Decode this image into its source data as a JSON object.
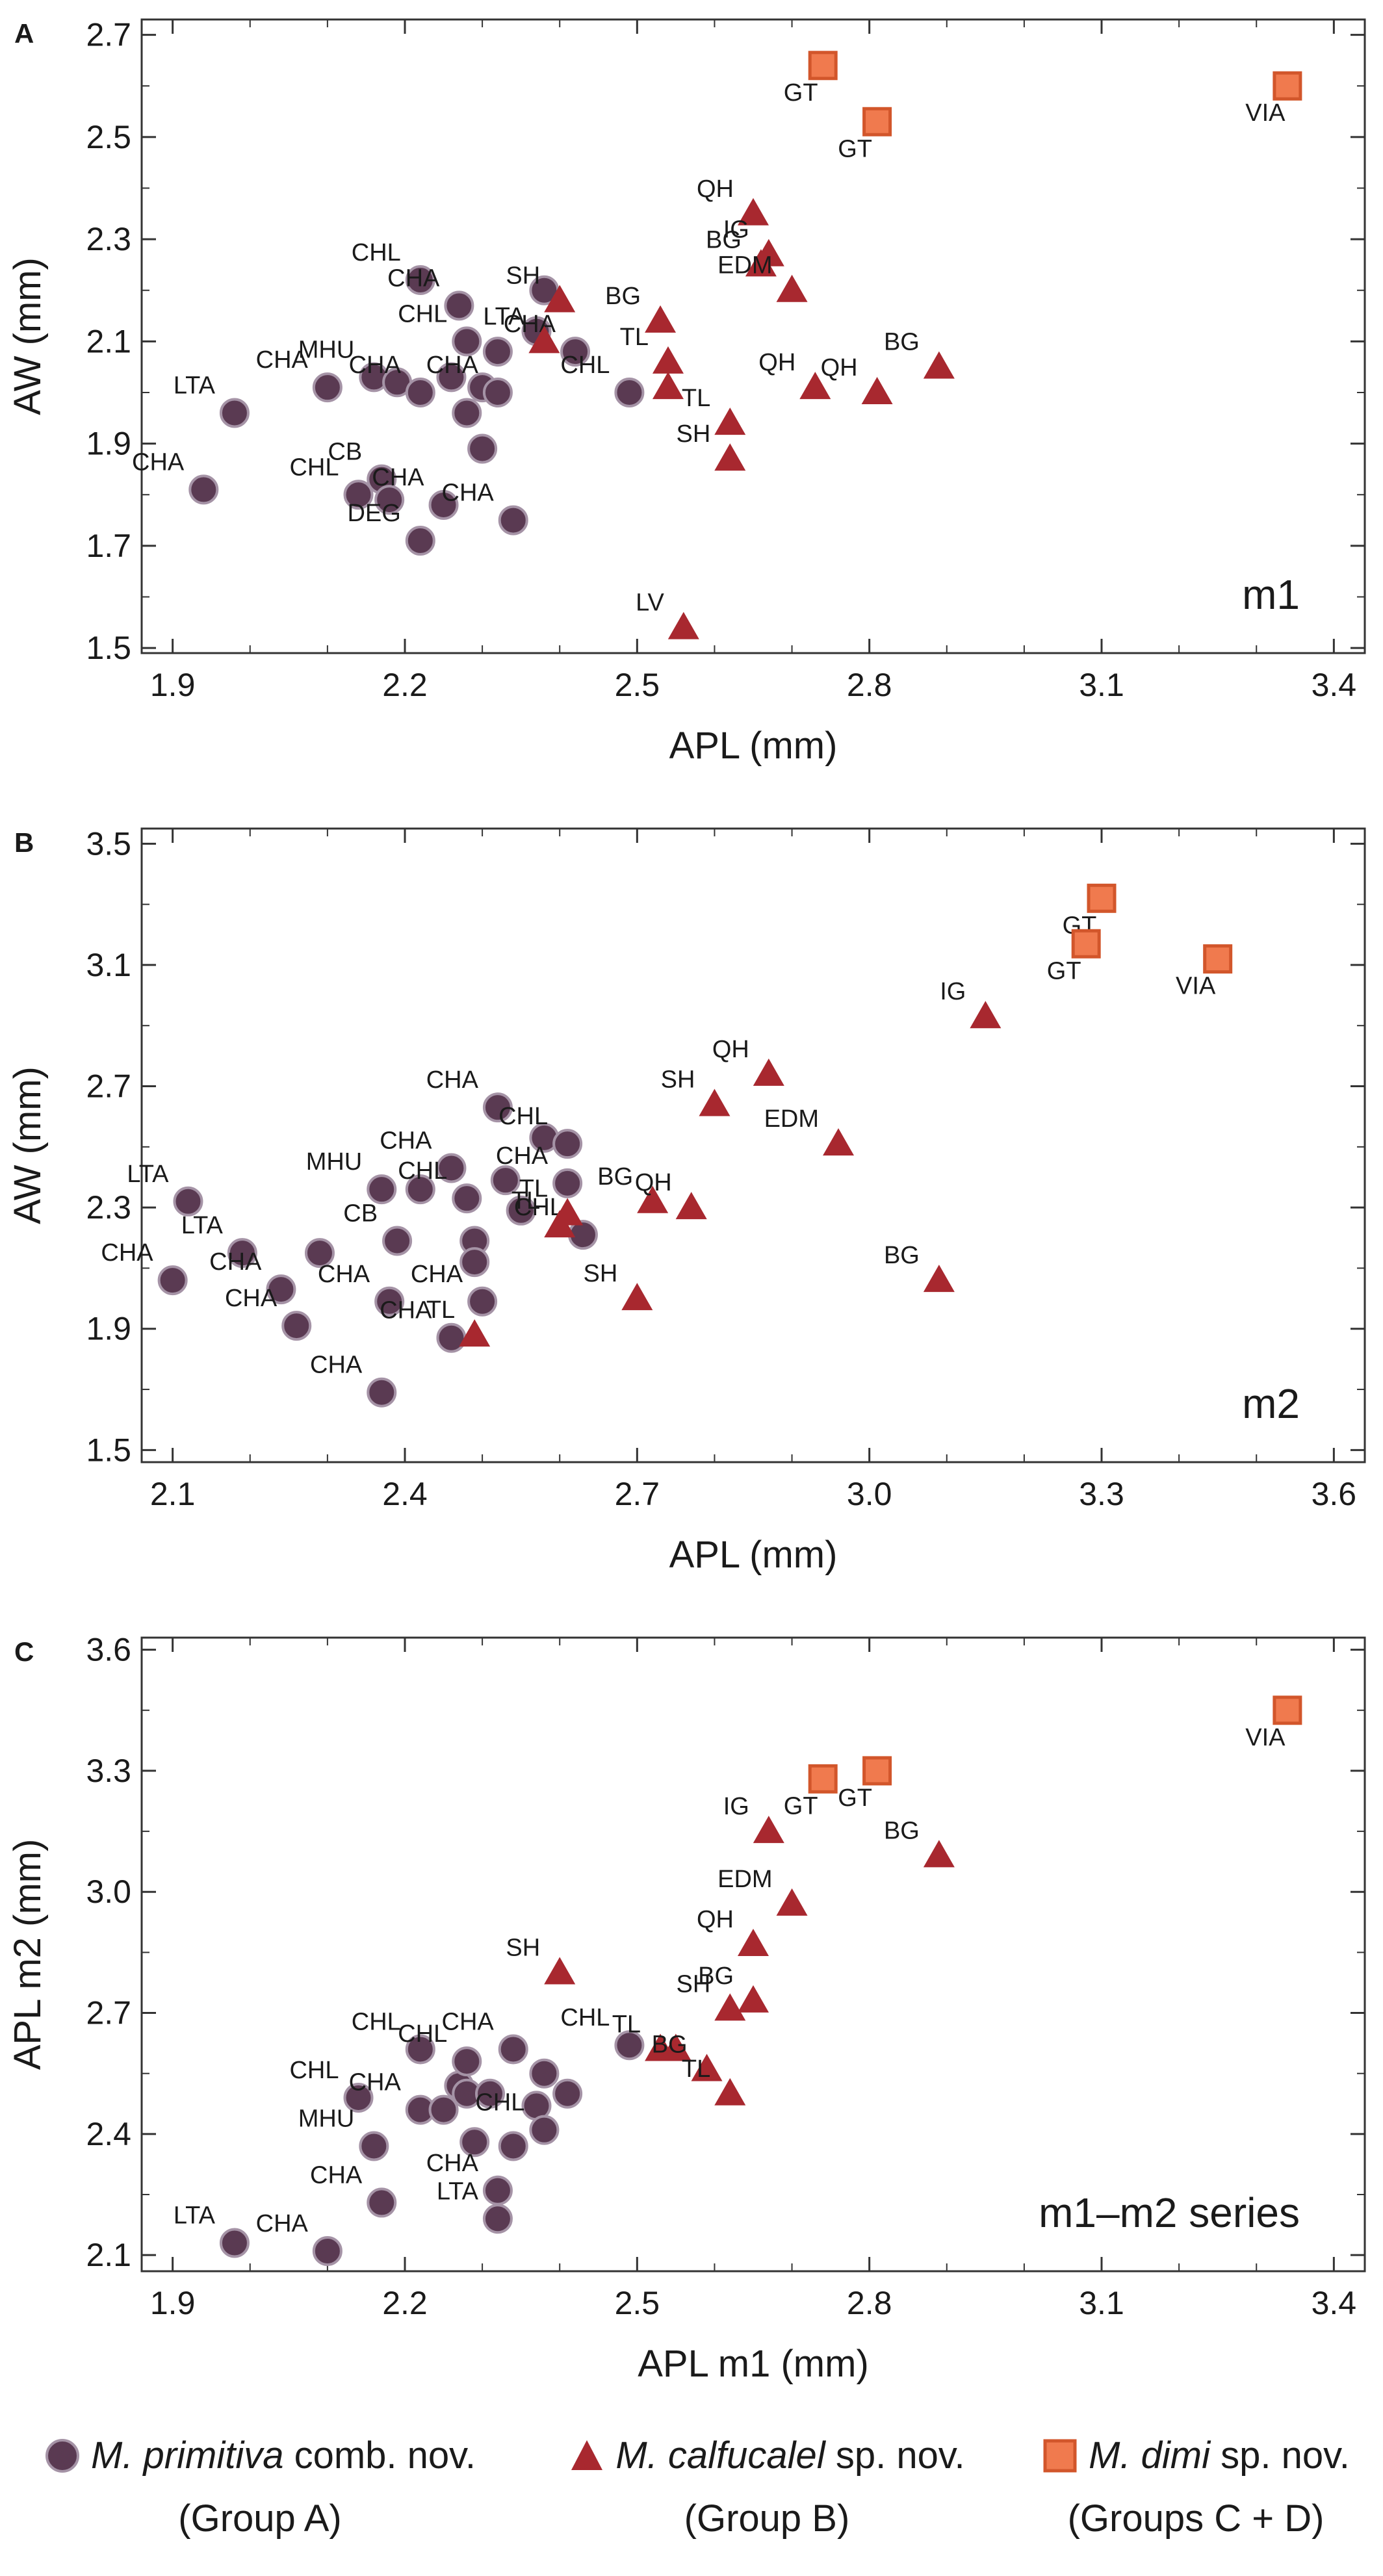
{
  "chart_data": [
    {
      "panel_label": "A",
      "type": "scatter",
      "xlabel": "APL (mm)",
      "ylabel": "AW (mm)",
      "annotation": "m1",
      "xlim": [
        1.86,
        3.44
      ],
      "ylim": [
        1.49,
        2.73
      ],
      "xticks": [
        1.9,
        2.2,
        2.5,
        2.8,
        3.1,
        3.4
      ],
      "yticks": [
        1.5,
        1.7,
        1.9,
        2.1,
        2.3,
        2.5,
        2.7
      ],
      "xtick_labels": [
        "1.9",
        "2.2",
        "2.5",
        "2.8",
        "3.1",
        "3.4"
      ],
      "ytick_labels": [
        "1.5",
        "1.7",
        "1.9",
        "2.1",
        "2.3",
        "2.5",
        "2.7"
      ],
      "series": [
        {
          "group": "A",
          "marker": "circle",
          "points": [
            {
              "x": 1.98,
              "y": 1.96,
              "label": "LTA"
            },
            {
              "x": 1.94,
              "y": 1.81,
              "label": "CHA"
            },
            {
              "x": 2.1,
              "y": 2.01,
              "label": "CHA"
            },
            {
              "x": 2.14,
              "y": 1.8,
              "label": "CHL"
            },
            {
              "x": 2.17,
              "y": 1.83,
              "label": "CB"
            },
            {
              "x": 2.18,
              "y": 1.79,
              "label": ""
            },
            {
              "x": 2.16,
              "y": 2.03,
              "label": "MHU"
            },
            {
              "x": 2.19,
              "y": 2.02,
              "label": ""
            },
            {
              "x": 2.22,
              "y": 2.0,
              "label": "CHA"
            },
            {
              "x": 2.22,
              "y": 2.22,
              "label": "CHL"
            },
            {
              "x": 2.22,
              "y": 1.71,
              "label": "DEG"
            },
            {
              "x": 2.26,
              "y": 2.03,
              "label": ""
            },
            {
              "x": 2.25,
              "y": 1.78,
              "label": "CHA"
            },
            {
              "x": 2.27,
              "y": 2.17,
              "label": "CHA"
            },
            {
              "x": 2.28,
              "y": 2.1,
              "label": "CHL"
            },
            {
              "x": 2.28,
              "y": 1.96,
              "label": ""
            },
            {
              "x": 2.3,
              "y": 2.01,
              "label": ""
            },
            {
              "x": 2.3,
              "y": 1.89,
              "label": ""
            },
            {
              "x": 2.32,
              "y": 2.08,
              "label": ""
            },
            {
              "x": 2.32,
              "y": 2.0,
              "label": "CHA"
            },
            {
              "x": 2.34,
              "y": 1.75,
              "label": "CHA"
            },
            {
              "x": 2.37,
              "y": 2.12,
              "label": ""
            },
            {
              "x": 2.38,
              "y": 2.2,
              "label": ""
            },
            {
              "x": 2.42,
              "y": 2.08,
              "label": "CHA"
            },
            {
              "x": 2.49,
              "y": 2.0,
              "label": "CHL"
            }
          ]
        },
        {
          "group": "B",
          "marker": "triangle",
          "points": [
            {
              "x": 2.4,
              "y": 2.18,
              "label": "SH"
            },
            {
              "x": 2.38,
              "y": 2.1,
              "label": "LTA"
            },
            {
              "x": 2.53,
              "y": 2.14,
              "label": "BG"
            },
            {
              "x": 2.54,
              "y": 2.06,
              "label": "TL"
            },
            {
              "x": 2.54,
              "y": 2.01,
              "label": ""
            },
            {
              "x": 2.62,
              "y": 1.94,
              "label": "TL"
            },
            {
              "x": 2.62,
              "y": 1.87,
              "label": "SH"
            },
            {
              "x": 2.56,
              "y": 1.54,
              "label": "LV"
            },
            {
              "x": 2.65,
              "y": 2.35,
              "label": "QH"
            },
            {
              "x": 2.66,
              "y": 2.25,
              "label": "BG"
            },
            {
              "x": 2.67,
              "y": 2.27,
              "label": "IG"
            },
            {
              "x": 2.7,
              "y": 2.2,
              "label": "EDM"
            },
            {
              "x": 2.73,
              "y": 2.01,
              "label": "QH"
            },
            {
              "x": 2.81,
              "y": 2.0,
              "label": "QH"
            },
            {
              "x": 2.89,
              "y": 2.05,
              "label": "BG"
            }
          ]
        },
        {
          "group": "C+D",
          "marker": "square",
          "points": [
            {
              "x": 2.74,
              "y": 2.64,
              "label": "GT"
            },
            {
              "x": 2.81,
              "y": 2.53,
              "label": "GT"
            },
            {
              "x": 3.34,
              "y": 2.6,
              "label": "VIA"
            }
          ]
        }
      ]
    },
    {
      "panel_label": "B",
      "type": "scatter",
      "xlabel": "APL (mm)",
      "ylabel": "AW (mm)",
      "annotation": "m2",
      "xlim": [
        2.06,
        3.64
      ],
      "ylim": [
        1.46,
        3.55
      ],
      "xticks": [
        2.1,
        2.4,
        2.7,
        3.0,
        3.3,
        3.6
      ],
      "yticks": [
        1.5,
        1.9,
        2.3,
        2.7,
        3.1,
        3.5
      ],
      "xtick_labels": [
        "2.1",
        "2.4",
        "2.7",
        "3.0",
        "3.3",
        "3.6"
      ],
      "ytick_labels": [
        "1.5",
        "1.9",
        "2.3",
        "2.7",
        "3.1",
        "3.5"
      ],
      "series": [
        {
          "group": "A",
          "marker": "circle",
          "points": [
            {
              "x": 2.12,
              "y": 2.32,
              "label": "LTA"
            },
            {
              "x": 2.1,
              "y": 2.06,
              "label": "CHA"
            },
            {
              "x": 2.19,
              "y": 2.15,
              "label": "LTA"
            },
            {
              "x": 2.24,
              "y": 2.03,
              "label": "CHA"
            },
            {
              "x": 2.26,
              "y": 1.91,
              "label": "CHA"
            },
            {
              "x": 2.29,
              "y": 2.15,
              "label": ""
            },
            {
              "x": 2.37,
              "y": 2.36,
              "label": "MHU"
            },
            {
              "x": 2.39,
              "y": 2.19,
              "label": "CB"
            },
            {
              "x": 2.38,
              "y": 1.99,
              "label": "CHA"
            },
            {
              "x": 2.37,
              "y": 1.69,
              "label": "CHA"
            },
            {
              "x": 2.42,
              "y": 2.36,
              "label": ""
            },
            {
              "x": 2.46,
              "y": 2.43,
              "label": "CHA"
            },
            {
              "x": 2.48,
              "y": 2.33,
              "label": "CHL"
            },
            {
              "x": 2.49,
              "y": 2.19,
              "label": ""
            },
            {
              "x": 2.49,
              "y": 2.12,
              "label": ""
            },
            {
              "x": 2.46,
              "y": 1.87,
              "label": "CHA"
            },
            {
              "x": 2.5,
              "y": 1.99,
              "label": "CHA"
            },
            {
              "x": 2.52,
              "y": 2.63,
              "label": "CHA"
            },
            {
              "x": 2.53,
              "y": 2.39,
              "label": ""
            },
            {
              "x": 2.55,
              "y": 2.29,
              "label": ""
            },
            {
              "x": 2.58,
              "y": 2.53,
              "label": ""
            },
            {
              "x": 2.61,
              "y": 2.51,
              "label": "CHL"
            },
            {
              "x": 2.61,
              "y": 2.38,
              "label": "CHA"
            },
            {
              "x": 2.63,
              "y": 2.21,
              "label": "CHL"
            }
          ]
        },
        {
          "group": "B",
          "marker": "triangle",
          "points": [
            {
              "x": 2.49,
              "y": 1.88,
              "label": "TL"
            },
            {
              "x": 2.6,
              "y": 2.24,
              "label": "TL"
            },
            {
              "x": 2.61,
              "y": 2.28,
              "label": "TL"
            },
            {
              "x": 2.7,
              "y": 2.0,
              "label": "SH"
            },
            {
              "x": 2.72,
              "y": 2.32,
              "label": "BG"
            },
            {
              "x": 2.77,
              "y": 2.3,
              "label": "QH"
            },
            {
              "x": 2.8,
              "y": 2.64,
              "label": "SH"
            },
            {
              "x": 2.87,
              "y": 2.74,
              "label": "QH"
            },
            {
              "x": 2.96,
              "y": 2.51,
              "label": "EDM"
            },
            {
              "x": 3.09,
              "y": 2.06,
              "label": "BG"
            },
            {
              "x": 3.15,
              "y": 2.93,
              "label": "IG"
            }
          ]
        },
        {
          "group": "C+D",
          "marker": "square",
          "points": [
            {
              "x": 3.3,
              "y": 3.32,
              "label": "GT"
            },
            {
              "x": 3.28,
              "y": 3.17,
              "label": "GT"
            },
            {
              "x": 3.45,
              "y": 3.12,
              "label": "VIA"
            }
          ]
        }
      ]
    },
    {
      "panel_label": "C",
      "type": "scatter",
      "xlabel": "APL m1 (mm)",
      "ylabel": "APL m2 (mm)",
      "annotation": "m1–m2 series",
      "xlim": [
        1.86,
        3.44
      ],
      "ylim": [
        2.06,
        3.63
      ],
      "xticks": [
        1.9,
        2.2,
        2.5,
        2.8,
        3.1,
        3.4
      ],
      "yticks": [
        2.1,
        2.4,
        2.7,
        3.0,
        3.3,
        3.6
      ],
      "xtick_labels": [
        "1.9",
        "2.2",
        "2.5",
        "2.8",
        "3.1",
        "3.4"
      ],
      "ytick_labels": [
        "2.1",
        "2.4",
        "2.7",
        "3.0",
        "3.3",
        "3.6"
      ],
      "series": [
        {
          "group": "A",
          "marker": "circle",
          "points": [
            {
              "x": 1.98,
              "y": 2.13,
              "label": "LTA"
            },
            {
              "x": 2.1,
              "y": 2.11,
              "label": "CHA"
            },
            {
              "x": 2.14,
              "y": 2.49,
              "label": "CHL"
            },
            {
              "x": 2.16,
              "y": 2.37,
              "label": "MHU"
            },
            {
              "x": 2.17,
              "y": 2.23,
              "label": "CHA"
            },
            {
              "x": 2.22,
              "y": 2.61,
              "label": "CHL"
            },
            {
              "x": 2.22,
              "y": 2.46,
              "label": "CHA"
            },
            {
              "x": 2.25,
              "y": 2.46,
              "label": ""
            },
            {
              "x": 2.27,
              "y": 2.52,
              "label": ""
            },
            {
              "x": 2.28,
              "y": 2.58,
              "label": "CHL"
            },
            {
              "x": 2.28,
              "y": 2.5,
              "label": ""
            },
            {
              "x": 2.29,
              "y": 2.38,
              "label": ""
            },
            {
              "x": 2.31,
              "y": 2.5,
              "label": ""
            },
            {
              "x": 2.32,
              "y": 2.26,
              "label": "CHA"
            },
            {
              "x": 2.32,
              "y": 2.19,
              "label": "LTA"
            },
            {
              "x": 2.34,
              "y": 2.61,
              "label": "CHA"
            },
            {
              "x": 2.34,
              "y": 2.37,
              "label": ""
            },
            {
              "x": 2.37,
              "y": 2.47,
              "label": ""
            },
            {
              "x": 2.38,
              "y": 2.55,
              "label": ""
            },
            {
              "x": 2.38,
              "y": 2.41,
              "label": "CHL"
            },
            {
              "x": 2.41,
              "y": 2.5,
              "label": ""
            },
            {
              "x": 2.49,
              "y": 2.62,
              "label": "CHL"
            }
          ]
        },
        {
          "group": "B",
          "marker": "triangle",
          "points": [
            {
              "x": 2.4,
              "y": 2.8,
              "label": "SH"
            },
            {
              "x": 2.53,
              "y": 2.61,
              "label": "TL"
            },
            {
              "x": 2.55,
              "y": 2.61,
              "label": ""
            },
            {
              "x": 2.59,
              "y": 2.56,
              "label": "BG"
            },
            {
              "x": 2.62,
              "y": 2.5,
              "label": "TL"
            },
            {
              "x": 2.62,
              "y": 2.71,
              "label": "SH"
            },
            {
              "x": 2.65,
              "y": 2.73,
              "label": "BG"
            },
            {
              "x": 2.65,
              "y": 2.87,
              "label": "QH"
            },
            {
              "x": 2.67,
              "y": 3.15,
              "label": "IG"
            },
            {
              "x": 2.7,
              "y": 2.97,
              "label": "EDM"
            },
            {
              "x": 2.89,
              "y": 3.09,
              "label": "BG"
            }
          ]
        },
        {
          "group": "C+D",
          "marker": "square",
          "points": [
            {
              "x": 2.74,
              "y": 3.28,
              "label": "GT"
            },
            {
              "x": 2.81,
              "y": 3.3,
              "label": "GT"
            },
            {
              "x": 3.34,
              "y": 3.45,
              "label": "VIA"
            }
          ]
        }
      ]
    }
  ],
  "legend": {
    "items": [
      {
        "marker": "circle",
        "name": "M. primitiva",
        "suffix": "comb. nov.",
        "group": "(Group A)"
      },
      {
        "marker": "triangle",
        "name": "M. calfucalel",
        "suffix": "sp. nov.",
        "group": "(Group B)"
      },
      {
        "marker": "square",
        "name": "M. dimi",
        "suffix": "sp. nov.",
        "group": "(Groups C + D)"
      }
    ]
  },
  "colors": {
    "circle_fill": "#5a3a52",
    "circle_stroke": "#a593a6",
    "triangle_fill": "#a8282f",
    "square_fill": "#f07a4e",
    "square_stroke": "#d2562b",
    "axis": "#333333",
    "text": "#1a1a1a"
  }
}
